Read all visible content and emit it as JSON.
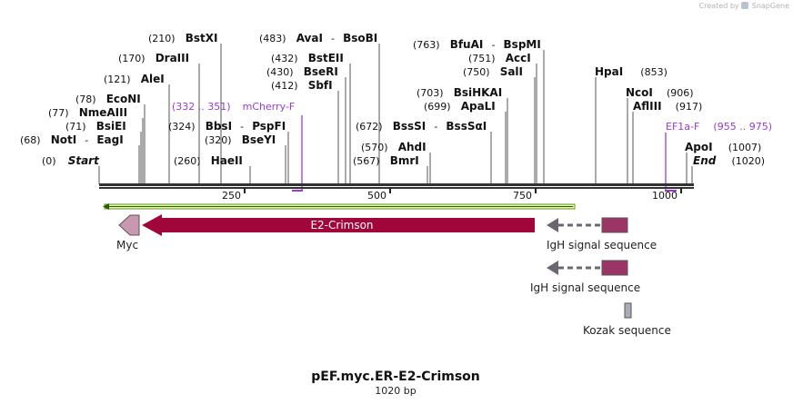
{
  "credit": {
    "created_by": "Created by",
    "brand": "SnapGene"
  },
  "title": "pEF.myc.ER-E2-Crimson",
  "subtitle": "1020 bp",
  "ticks": [
    "250",
    "500",
    "750",
    "1000"
  ],
  "enzymes": {
    "start": {
      "pos": "(0)",
      "name": "Start"
    },
    "end": {
      "pos": "(1020)",
      "name": "End"
    },
    "noti": {
      "pos": "(68)",
      "name": "NotI",
      "alt": "EagI"
    },
    "bsiei": {
      "pos": "(71)",
      "name": "BsiEI"
    },
    "nmeaiii": {
      "pos": "(77)",
      "name": "NmeAIII"
    },
    "econi": {
      "pos": "(78)",
      "name": "EcoNI"
    },
    "alei": {
      "pos": "(121)",
      "name": "AleI"
    },
    "draiii": {
      "pos": "(170)",
      "name": "DraIII"
    },
    "bstxi": {
      "pos": "(210)",
      "name": "BstXI"
    },
    "haeii": {
      "pos": "(260)",
      "name": "HaeII"
    },
    "bseyi": {
      "pos": "(320)",
      "name": "BseYI"
    },
    "bbsi": {
      "pos": "(324)",
      "name": "BbsI",
      "alt": "PspFI"
    },
    "sbfi": {
      "pos": "(412)",
      "name": "SbfI"
    },
    "bseri": {
      "pos": "(430)",
      "name": "BseRI"
    },
    "bsteii": {
      "pos": "(432)",
      "name": "BstEII"
    },
    "avai": {
      "pos": "(483)",
      "name": "AvaI",
      "alt": "BsoBI"
    },
    "bmri": {
      "pos": "(567)",
      "name": "BmrI"
    },
    "ahdi": {
      "pos": "(570)",
      "name": "AhdI"
    },
    "bsssi": {
      "pos": "(672)",
      "name": "BssSI",
      "alt": "BssSαI"
    },
    "apali": {
      "pos": "(699)",
      "name": "ApaLI"
    },
    "bsihkai": {
      "pos": "(703)",
      "name": "BsiHKAI"
    },
    "sali": {
      "pos": "(750)",
      "name": "SalI"
    },
    "acci": {
      "pos": "(751)",
      "name": "AccI"
    },
    "bfuai": {
      "pos": "(763)",
      "name": "BfuAI",
      "alt": "BspMI"
    },
    "hpai": {
      "name": "HpaI",
      "pos": "(853)"
    },
    "ncoi": {
      "name": "NcoI",
      "pos": "(906)"
    },
    "afliii": {
      "name": "AflIII",
      "pos": "(917)"
    },
    "apoi": {
      "name": "ApoI",
      "pos": "(1007)"
    }
  },
  "primers": {
    "mcherry_f": {
      "range": "(332 .. 351)",
      "name": "mCherry-F"
    },
    "ef1a_f": {
      "name": "EF1a-F",
      "range": "(955 .. 975)"
    }
  },
  "features": {
    "e2_crimson": "E2-Crimson",
    "myc": "Myc",
    "igh1": "IgH signal sequence",
    "igh2": "IgH signal sequence",
    "kozak": "Kozak sequence"
  },
  "colors": {
    "e2_crimson": "#a0063a",
    "myc": "#c898b0",
    "igh": "#9a3566",
    "igh_arrow": "#6b6670",
    "kozak": "#a8aeb8",
    "orf": "#5a9a10",
    "primer": "#9a3bd0"
  }
}
